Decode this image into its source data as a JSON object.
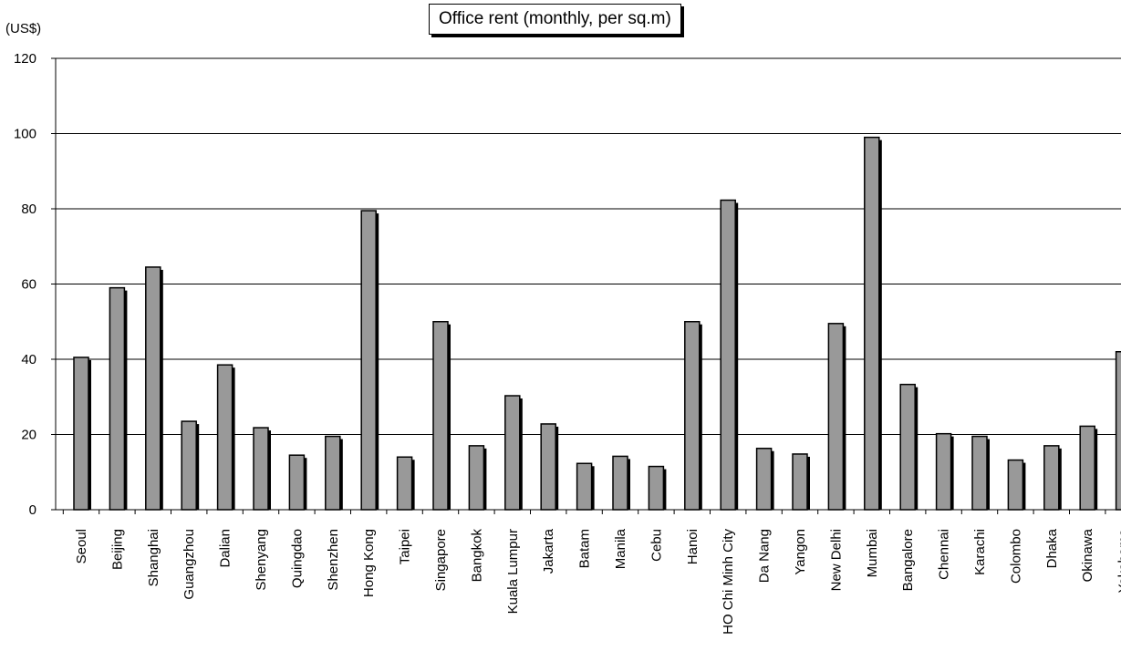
{
  "chart_data": {
    "type": "bar",
    "title": "Office rent (monthly, per sq.m)",
    "ylabel": "(US$)",
    "xlabel": "",
    "ylim": [
      0,
      120
    ],
    "yticks": [
      0,
      20,
      40,
      60,
      80,
      100,
      120
    ],
    "grid": true,
    "colors": {
      "bar": "#999999",
      "shadow": "#000000",
      "grid": "#000000"
    },
    "categories": [
      "Seoul",
      "Beijing",
      "Shanghai",
      "Guangzhou",
      "Dalian",
      "Shenyang",
      "Quingdao",
      "Shenzhen",
      "Hong Kong",
      "Taipei",
      "Singapore",
      "Bangkok",
      "Kuala Lumpur",
      "Jakarta",
      "Batam",
      "Manila",
      "Cebu",
      "Hanoi",
      "HO Chi Minh City",
      "Da Nang",
      "Yangon",
      "New Delhi",
      "Mumbai",
      "Bangalore",
      "Chennai",
      "Karachi",
      "Colombo",
      "Dhaka",
      "Okinawa",
      "Yokohama"
    ],
    "values": [
      40.5,
      59,
      64.5,
      23.5,
      38.5,
      21.8,
      14.5,
      19.5,
      79.5,
      14,
      50,
      17,
      30.3,
      22.8,
      12.3,
      14.2,
      11.5,
      50,
      82.3,
      16.3,
      14.8,
      49.5,
      99,
      33.3,
      20.2,
      19.5,
      13.2,
      17,
      22.2,
      42
    ]
  }
}
